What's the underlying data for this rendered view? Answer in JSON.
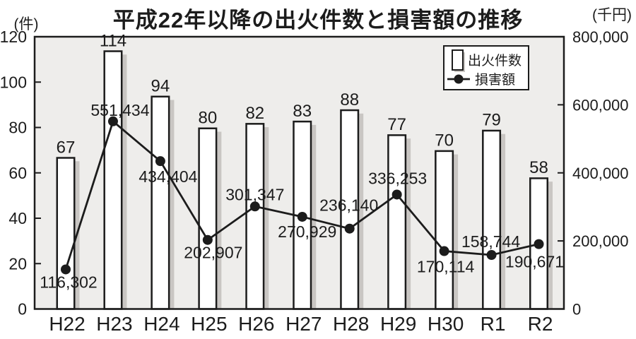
{
  "colors": {
    "page_bg": "#ffffff",
    "plot_bg": "#eeedeb",
    "bar_fill": "#ffffff",
    "bar_stroke": "#1c1c1c",
    "bar_shadow": "#c9c6c3",
    "line": "#1c1c1c",
    "point": "#1c1c1c",
    "frame": "#1c1c1c",
    "text": "#1c1c1c",
    "legend_bg": "#ffffff"
  },
  "chart_data": {
    "type": "bar+line",
    "title": "平成22年以降の出火件数と損害額の推移",
    "categories": [
      "H22",
      "H23",
      "H24",
      "H25",
      "H26",
      "H27",
      "H28",
      "H29",
      "H30",
      "R1",
      "R2"
    ],
    "series": [
      {
        "name": "出火件数",
        "type": "bar",
        "axis": "left",
        "unit": "件",
        "values": [
          67,
          114,
          94,
          80,
          82,
          83,
          88,
          77,
          70,
          79,
          58
        ]
      },
      {
        "name": "損害額",
        "type": "line",
        "axis": "right",
        "unit": "千円",
        "values": [
          116302,
          551434,
          434404,
          202907,
          301347,
          270929,
          236140,
          336253,
          170114,
          158744,
          190671
        ],
        "label_offsets": [
          {
            "dx": 4,
            "dy": 26
          },
          {
            "dx": 10,
            "dy": -8
          },
          {
            "dx": 11,
            "dy": 30
          },
          {
            "dx": 8,
            "dy": 26
          },
          {
            "dx": 0,
            "dy": -9
          },
          {
            "dx": 7,
            "dy": 29
          },
          {
            "dx": -1,
            "dy": -25
          },
          {
            "dx": 1,
            "dy": -15
          },
          {
            "dx": 2,
            "dy": 30
          },
          {
            "dx": -1,
            "dy": -11
          },
          {
            "dx": -6,
            "dy": 33
          }
        ]
      }
    ],
    "left_axis": {
      "unit_label": "(件)",
      "min": 0,
      "max": 120,
      "tick_step": 20,
      "ticks": [
        0,
        20,
        40,
        60,
        80,
        100,
        120
      ]
    },
    "right_axis": {
      "unit_label": "(千円)",
      "min": 0,
      "max": 800000,
      "tick_step": 200000,
      "ticks": [
        0,
        200000,
        400000,
        600000,
        800000
      ]
    },
    "grid": false,
    "data_labels": true,
    "legend_position": "top-right"
  }
}
